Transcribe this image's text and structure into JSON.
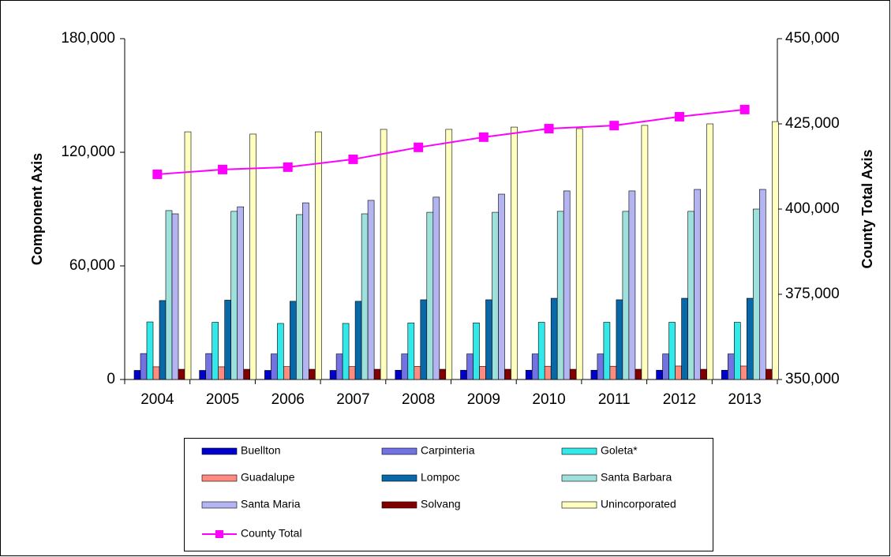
{
  "chart_data": {
    "type": "bar",
    "ylabel": "Component Axis",
    "y2label": "County Total Axis",
    "categories": [
      "2004",
      "2005",
      "2006",
      "2007",
      "2008",
      "2009",
      "2010",
      "2011",
      "2012",
      "2013"
    ],
    "ylim": [
      0,
      180000
    ],
    "yticks": [
      0,
      {
        "value": 60000,
        "label": "60,000"
      },
      {
        "value": 120000,
        "label": "120,000"
      },
      {
        "value": 180000,
        "label": "180,000"
      }
    ],
    "y2lim": [
      350000,
      450000
    ],
    "y2ticks": [
      {
        "value": 350000,
        "label": "350,000"
      },
      {
        "value": 375000,
        "label": "375,000"
      },
      {
        "value": 400000,
        "label": "400,000"
      },
      {
        "value": 425000,
        "label": "425,000"
      },
      {
        "value": 450000,
        "label": "450,000"
      }
    ],
    "series": [
      {
        "name": "Buellton",
        "color": "#0000cc",
        "values": [
          4800,
          4800,
          4800,
          4800,
          4900,
          4900,
          4900,
          4900,
          4900,
          4900
        ]
      },
      {
        "name": "Carpinteria",
        "color": "#7272e2",
        "values": [
          13700,
          13700,
          13500,
          13500,
          13500,
          13500,
          13500,
          13500,
          13500,
          13500
        ]
      },
      {
        "name": "Goleta*",
        "color": "#33e8e8",
        "values": [
          30400,
          30200,
          29600,
          29600,
          29900,
          29900,
          30200,
          30200,
          30200,
          30200
        ]
      },
      {
        "name": "Guadalupe",
        "color": "#ff8a80",
        "values": [
          6700,
          6700,
          6800,
          6800,
          6900,
          6900,
          7000,
          7000,
          7100,
          7100
        ]
      },
      {
        "name": "Lompoc",
        "color": "#0868a8",
        "values": [
          41700,
          41900,
          41300,
          41300,
          42100,
          42100,
          42900,
          42100,
          42900,
          42900
        ]
      },
      {
        "name": "Santa Barbara",
        "color": "#9ee0dc",
        "values": [
          89200,
          88800,
          87100,
          87500,
          88300,
          88300,
          88800,
          88800,
          88800,
          90000
        ]
      },
      {
        "name": "Santa Maria",
        "color": "#b4b4f2",
        "values": [
          87500,
          91200,
          93300,
          94600,
          96300,
          97900,
          99600,
          99600,
          100400,
          100400
        ]
      },
      {
        "name": "Solvang",
        "color": "#800000",
        "values": [
          5400,
          5400,
          5400,
          5400,
          5400,
          5400,
          5400,
          5400,
          5400,
          5400
        ]
      },
      {
        "name": "Unincorporated",
        "color": "#ffffc0",
        "values": [
          130800,
          129600,
          130800,
          132100,
          132100,
          133300,
          132500,
          134200,
          135000,
          136200
        ]
      },
      {
        "name": "County Total",
        "color": "#ff00ff",
        "type": "line",
        "axis": "y2",
        "marker": "square",
        "values": [
          410200,
          411600,
          412300,
          414600,
          418100,
          421100,
          423600,
          424500,
          427100,
          429200
        ]
      }
    ]
  }
}
